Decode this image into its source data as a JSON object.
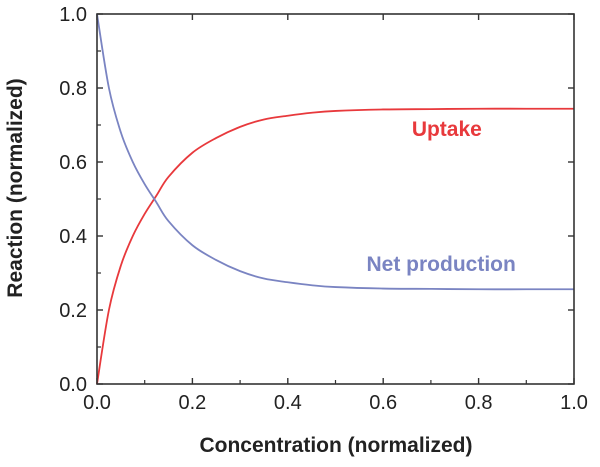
{
  "chart_data": {
    "type": "line",
    "title": "",
    "xlabel": "Concentration (normalized)",
    "ylabel": "Reaction (normalized)",
    "xlim": [
      0,
      1
    ],
    "ylim": [
      0,
      1
    ],
    "grid": false,
    "legend": "inline labels",
    "x_ticks": [
      "0.0",
      "0.2",
      "0.4",
      "0.6",
      "0.8",
      "1.0"
    ],
    "y_ticks": [
      "0.0",
      "0.2",
      "0.4",
      "0.6",
      "0.8",
      "1.0"
    ],
    "series": [
      {
        "name": "Uptake",
        "color": "#e8393c",
        "x": [
          0.0,
          0.025,
          0.05,
          0.075,
          0.1,
          0.125,
          0.15,
          0.2,
          0.25,
          0.3,
          0.35,
          0.4,
          0.45,
          0.5,
          0.6,
          0.7,
          0.8,
          0.9,
          1.0
        ],
        "y": [
          0.0,
          0.2,
          0.32,
          0.4,
          0.46,
          0.51,
          0.56,
          0.625,
          0.665,
          0.695,
          0.715,
          0.725,
          0.733,
          0.738,
          0.742,
          0.743,
          0.744,
          0.744,
          0.744
        ]
      },
      {
        "name": "Net production",
        "color": "#7a84c2",
        "x": [
          0.0,
          0.025,
          0.05,
          0.075,
          0.1,
          0.125,
          0.15,
          0.2,
          0.25,
          0.3,
          0.35,
          0.4,
          0.45,
          0.5,
          0.6,
          0.7,
          0.8,
          0.9,
          1.0
        ],
        "y": [
          1.0,
          0.8,
          0.68,
          0.6,
          0.54,
          0.49,
          0.44,
          0.375,
          0.335,
          0.305,
          0.285,
          0.275,
          0.267,
          0.262,
          0.258,
          0.257,
          0.256,
          0.256,
          0.256
        ]
      }
    ]
  }
}
